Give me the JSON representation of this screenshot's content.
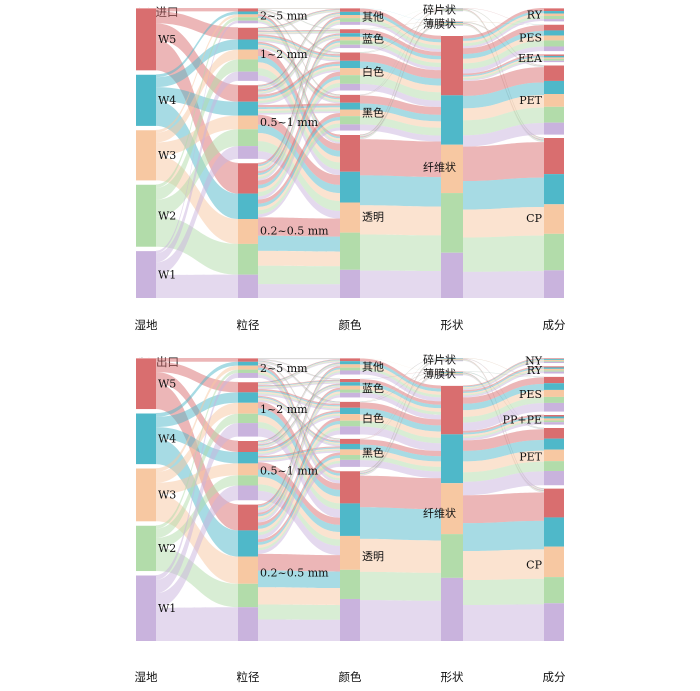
{
  "colors": {
    "W5": "#d96e6f",
    "W4": "#4fb8c9",
    "W3": "#f7c8a2",
    "W2": "#b2dcaa",
    "W1": "#c9b3dd"
  },
  "panels": [
    {
      "title": "(a) 进口",
      "columns": [
        {
          "label": "湿地",
          "nodes": [
            {
              "id": "W5",
              "label": "W5",
              "value": 58
            },
            {
              "id": "W4",
              "label": "W4",
              "value": 48
            },
            {
              "id": "W3",
              "label": "W3",
              "value": 47
            },
            {
              "id": "W2",
              "label": "W2",
              "value": 58
            },
            {
              "id": "W1",
              "label": "W1",
              "value": 44
            }
          ]
        },
        {
          "label": "粒径",
          "nodes": [
            {
              "id": "s25",
              "label": "2~5 mm",
              "value": 12
            },
            {
              "id": "s12",
              "label": "1~2 mm",
              "value": 42
            },
            {
              "id": "s051",
              "label": "0.5~1 mm",
              "value": 58
            },
            {
              "id": "s0205",
              "label": "0.2~0.5 mm",
              "value": 106
            }
          ]
        },
        {
          "label": "颜色",
          "nodes": [
            {
              "id": "c_other",
              "label": "其他",
              "value": 14
            },
            {
              "id": "c_blue",
              "label": "蓝色",
              "value": 16
            },
            {
              "id": "c_white",
              "label": "白色",
              "value": 32
            },
            {
              "id": "c_black",
              "label": "黑色",
              "value": 30
            },
            {
              "id": "c_clear",
              "label": "透明",
              "value": 136
            }
          ]
        },
        {
          "label": "形状",
          "nodes": [
            {
              "id": "f_frag",
              "label": "碎片状",
              "value": 3
            },
            {
              "id": "f_film",
              "label": "薄膜状",
              "value": 4
            },
            {
              "id": "f_fiber",
              "label": "纤维状",
              "value": 240
            }
          ]
        },
        {
          "label": "成分",
          "nodes": [
            {
              "id": "RY",
              "label": "RY",
              "value": 10
            },
            {
              "id": "PES",
              "label": "PES",
              "value": 20
            },
            {
              "id": "EEA",
              "label": "EEA",
              "value": 6
            },
            {
              "id": "PET",
              "label": "PET",
              "value": 52
            },
            {
              "id": "CP",
              "label": "CP",
              "value": 120
            }
          ]
        }
      ]
    },
    {
      "title": "(b) 出口",
      "columns": [
        {
          "label": "湿地",
          "nodes": [
            {
              "id": "W5",
              "label": "W5",
              "value": 48
            },
            {
              "id": "W4",
              "label": "W4",
              "value": 48
            },
            {
              "id": "W3",
              "label": "W3",
              "value": 50
            },
            {
              "id": "W2",
              "label": "W2",
              "value": 43
            },
            {
              "id": "W1",
              "label": "W1",
              "value": 62
            }
          ]
        },
        {
          "label": "粒径",
          "nodes": [
            {
              "id": "s25",
              "label": "2~5 mm",
              "value": 16
            },
            {
              "id": "s12",
              "label": "1~2 mm",
              "value": 44
            },
            {
              "id": "s051",
              "label": "0.5~1 mm",
              "value": 48
            },
            {
              "id": "s0205",
              "label": "0.2~0.5 mm",
              "value": 110
            }
          ]
        },
        {
          "label": "颜色",
          "nodes": [
            {
              "id": "c_other",
              "label": "其他",
              "value": 14
            },
            {
              "id": "c_blue",
              "label": "蓝色",
              "value": 16
            },
            {
              "id": "c_white",
              "label": "白色",
              "value": 28
            },
            {
              "id": "c_black",
              "label": "黑色",
              "value": 24
            },
            {
              "id": "c_clear",
              "label": "透明",
              "value": 144
            }
          ]
        },
        {
          "label": "形状",
          "nodes": [
            {
              "id": "f_frag",
              "label": "碎片状",
              "value": 3
            },
            {
              "id": "f_film",
              "label": "薄膜状",
              "value": 4
            },
            {
              "id": "f_fiber",
              "label": "纤维状",
              "value": 240
            }
          ]
        },
        {
          "label": "成分",
          "nodes": [
            {
              "id": "NY",
              "label": "NY",
              "value": 4
            },
            {
              "id": "RY",
              "label": "RY",
              "value": 6
            },
            {
              "id": "PES",
              "label": "PES",
              "value": 28
            },
            {
              "id": "PPPE",
              "label": "PP+PE",
              "value": 8
            },
            {
              "id": "PET",
              "label": "PET",
              "value": 46
            },
            {
              "id": "CP",
              "label": "CP",
              "value": 122
            }
          ]
        }
      ]
    }
  ]
}
